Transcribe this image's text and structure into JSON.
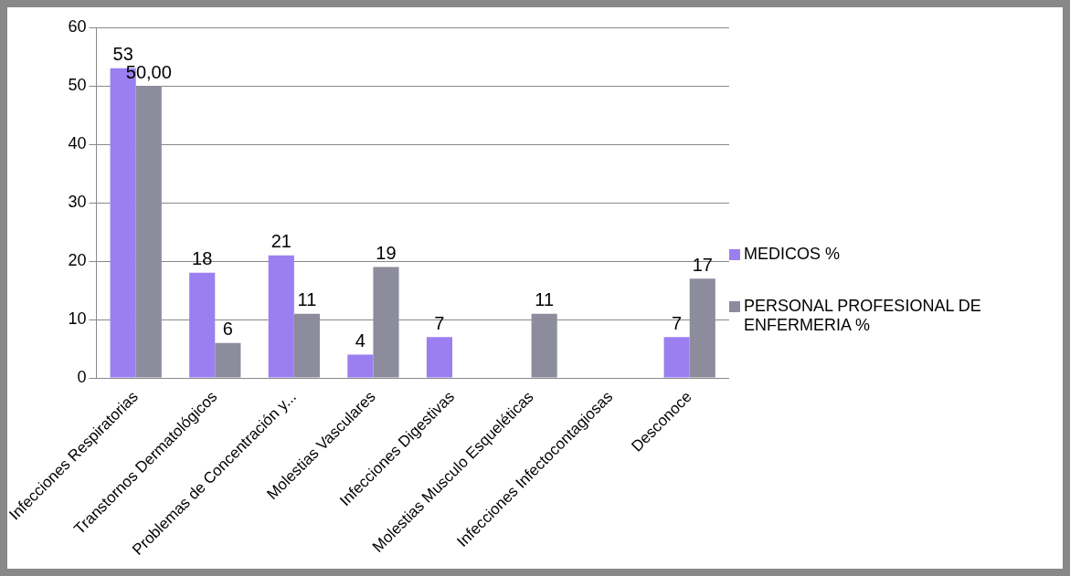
{
  "chart_data": {
    "type": "bar",
    "categories": [
      "Infecciones Respiratorias",
      "Transtornos Dermatológicos",
      "Problemas de Concentración y...",
      "Molestias Vasculares",
      "Infecciones Digestivas",
      "Molestias Musculo Esqueléticas",
      "Infecciones Infectocontagiosas",
      "Desconoce"
    ],
    "series": [
      {
        "name": "MEDICOS %",
        "color": "#9b7ff0",
        "values": [
          53,
          18,
          21,
          4,
          7,
          null,
          null,
          7
        ],
        "value_labels": [
          "53",
          "18",
          "21",
          "4",
          "7",
          null,
          null,
          "7"
        ]
      },
      {
        "name": "PERSONAL PROFESIONAL DE ENFERMERIA %",
        "color": "#8c8c9c",
        "values": [
          50,
          6,
          11,
          19,
          null,
          11,
          null,
          17
        ],
        "value_labels": [
          "50,00",
          "6",
          "11",
          "19",
          null,
          "11",
          null,
          "17"
        ]
      }
    ],
    "ylim": [
      0,
      60
    ],
    "yticks": [
      0,
      10,
      20,
      30,
      40,
      50,
      60
    ],
    "grid": "y",
    "legend": "right"
  }
}
